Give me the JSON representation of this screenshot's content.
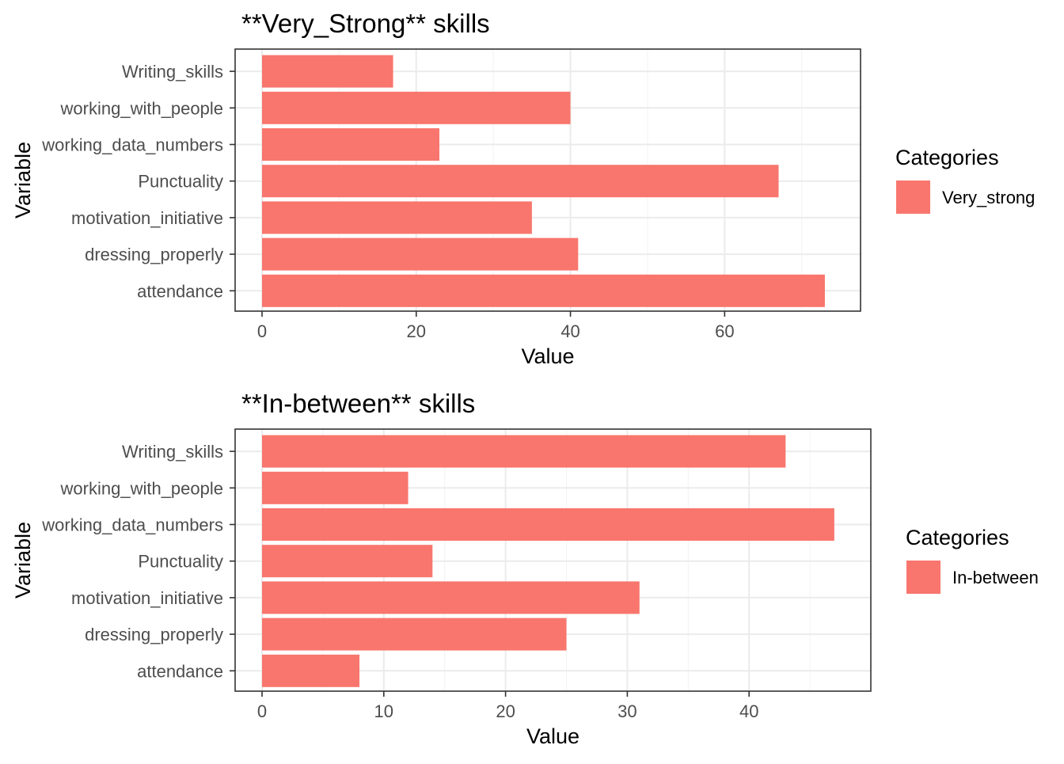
{
  "chart_data": [
    {
      "type": "bar",
      "orientation": "horizontal",
      "title": "**Very_Strong** skills",
      "xlabel": "Value",
      "ylabel": "Variable",
      "categories": [
        "Writing_skills",
        "working_with_people",
        "working_data_numbers",
        "Punctuality",
        "motivation_initiative",
        "dressing_properly",
        "attendance"
      ],
      "series": [
        {
          "name": "Very_strong",
          "values": [
            17,
            40,
            23,
            67,
            35,
            41,
            73
          ]
        }
      ],
      "xlim": [
        0,
        76.6
      ],
      "xticks": [
        0,
        20,
        40,
        60
      ],
      "grid": true,
      "legend": {
        "title": "Categories",
        "position": "right"
      },
      "color": "#f8766d"
    },
    {
      "type": "bar",
      "orientation": "horizontal",
      "title": "**In-between** skills",
      "xlabel": "Value",
      "ylabel": "Variable",
      "categories": [
        "Writing_skills",
        "working_with_people",
        "working_data_numbers",
        "Punctuality",
        "motivation_initiative",
        "dressing_properly",
        "attendance"
      ],
      "series": [
        {
          "name": "In-between",
          "values": [
            43,
            12,
            47,
            14,
            31,
            25,
            8
          ]
        }
      ],
      "xlim": [
        0,
        49.35
      ],
      "xticks": [
        0,
        10,
        20,
        30,
        40
      ],
      "grid": true,
      "legend": {
        "title": "Categories",
        "position": "right"
      },
      "color": "#f8766d"
    }
  ]
}
